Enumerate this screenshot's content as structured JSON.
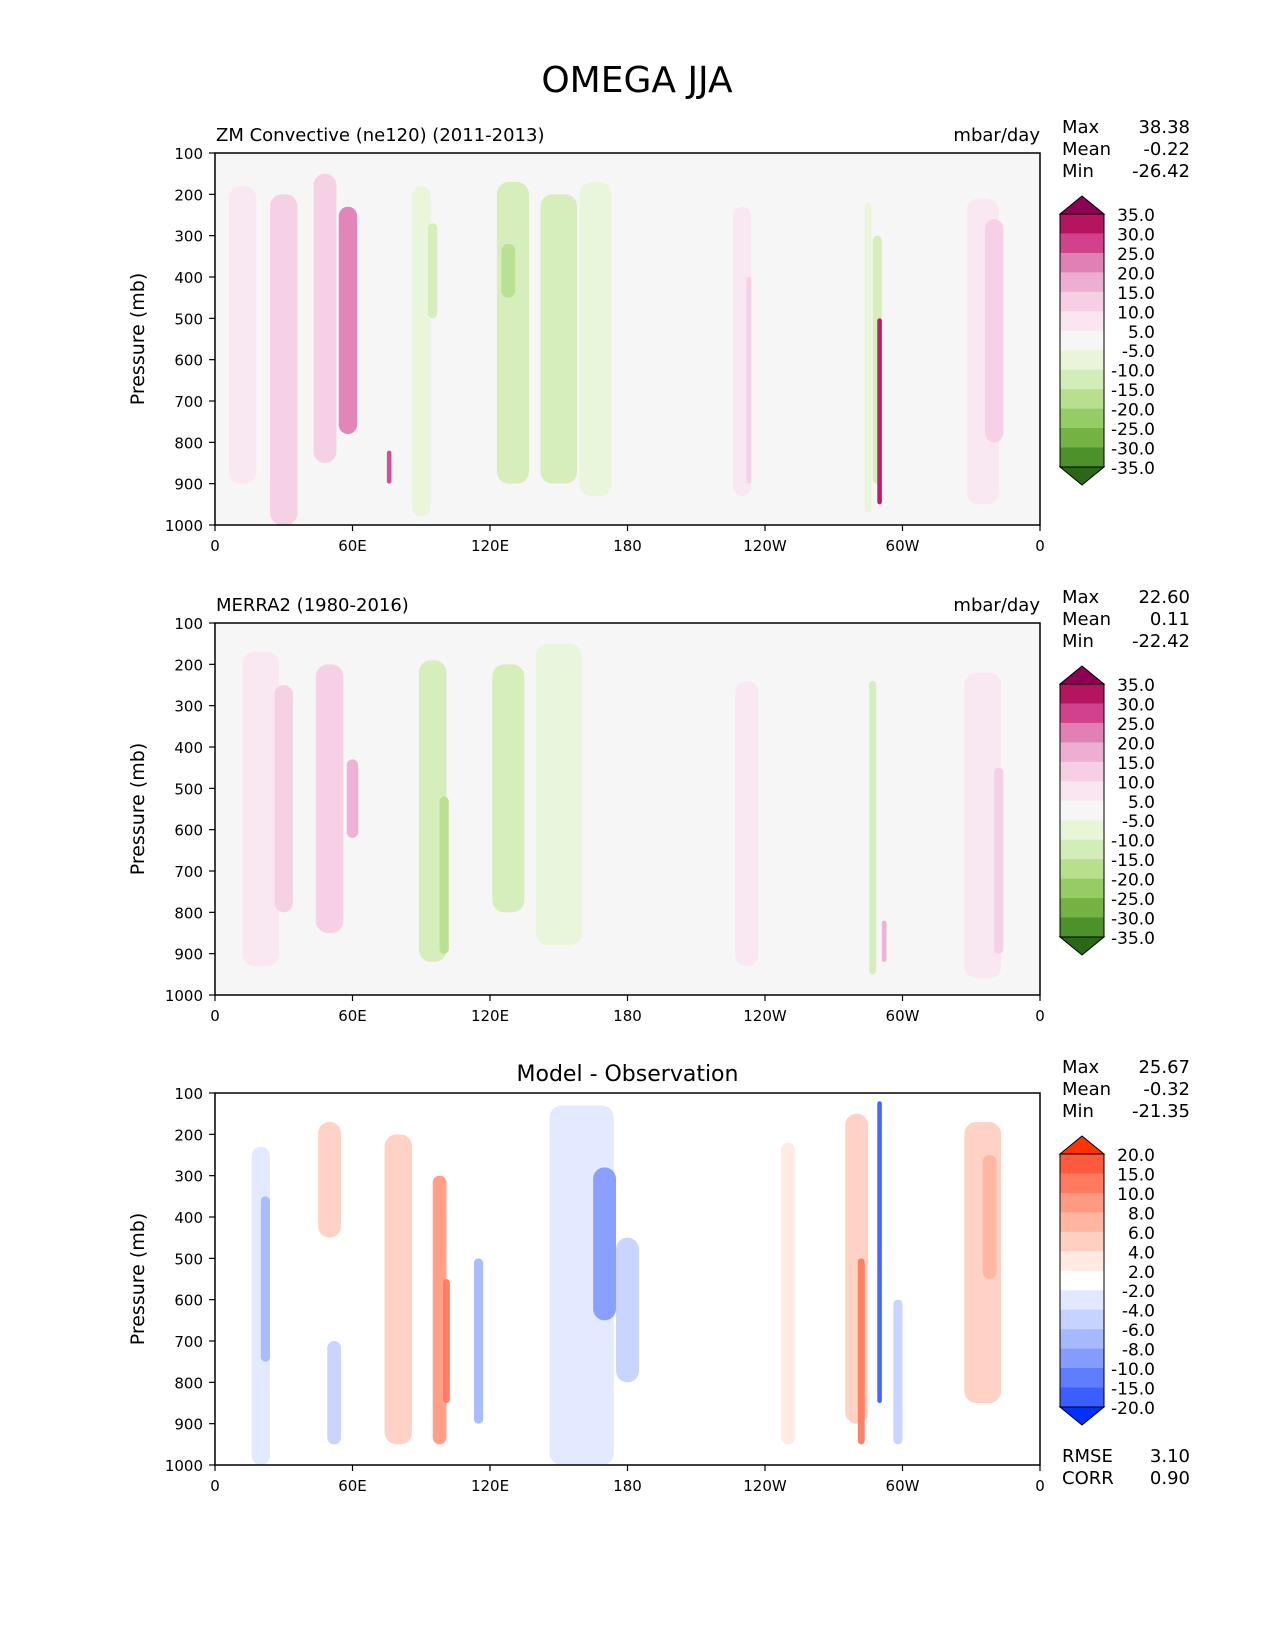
{
  "figure_title": "OMEGA JJA",
  "chart_data": [
    {
      "type": "heatmap",
      "title": "ZM Convective (ne120) (2011-2013)",
      "units": "mbar/day",
      "ylabel": "Pressure (mb)",
      "xticks": [
        "0",
        "60E",
        "120E",
        "180",
        "120W",
        "60W",
        "0"
      ],
      "yticks": [
        "100",
        "200",
        "300",
        "400",
        "500",
        "600",
        "700",
        "800",
        "900",
        "1000"
      ],
      "xlim": [
        0,
        360
      ],
      "ylim": [
        1000,
        100
      ],
      "stats": [
        {
          "label": "Max",
          "value": "38.38"
        },
        {
          "label": "Mean",
          "value": "-0.22"
        },
        {
          "label": "Min",
          "value": "-26.42"
        }
      ],
      "colorbar": {
        "levels": [
          "35.0",
          "30.0",
          "25.0",
          "20.0",
          "15.0",
          "10.0",
          "5.0",
          "-5.0",
          "-10.0",
          "-15.0",
          "-20.0",
          "-25.0",
          "-30.0",
          "-35.0"
        ],
        "colors": [
          "#8e0152",
          "#b5155f",
          "#d0438c",
          "#e080b5",
          "#eeaed4",
          "#f6cfe5",
          "#f9e6f1",
          "#f6f6f6",
          "#e9f5d9",
          "#d3edb8",
          "#b7df8e",
          "#96cc66",
          "#74b244",
          "#4d912a",
          "#2a6818"
        ]
      },
      "features": [
        {
          "lon": 12,
          "p1": 180,
          "p2": 900,
          "width": 12,
          "value": 8
        },
        {
          "lon": 30,
          "p1": 200,
          "p2": 1000,
          "width": 12,
          "value": 10
        },
        {
          "lon": 48,
          "p1": 150,
          "p2": 850,
          "width": 10,
          "value": 10
        },
        {
          "lon": 58,
          "p1": 230,
          "p2": 780,
          "width": 8,
          "value": 22
        },
        {
          "lon": 76,
          "p1": 820,
          "p2": 900,
          "width": 2,
          "value": 25
        },
        {
          "lon": 90,
          "p1": 180,
          "p2": 980,
          "width": 8,
          "value": -8
        },
        {
          "lon": 95,
          "p1": 270,
          "p2": 500,
          "width": 4,
          "value": -13
        },
        {
          "lon": 130,
          "p1": 170,
          "p2": 900,
          "width": 14,
          "value": -12
        },
        {
          "lon": 128,
          "p1": 320,
          "p2": 450,
          "width": 6,
          "value": -18
        },
        {
          "lon": 150,
          "p1": 200,
          "p2": 900,
          "width": 16,
          "value": -12
        },
        {
          "lon": 166,
          "p1": 170,
          "p2": 930,
          "width": 14,
          "value": -8
        },
        {
          "lon": 230,
          "p1": 230,
          "p2": 930,
          "width": 8,
          "value": 8
        },
        {
          "lon": 233,
          "p1": 400,
          "p2": 900,
          "width": 2,
          "value": 12
        },
        {
          "lon": 285,
          "p1": 220,
          "p2": 970,
          "width": 3,
          "value": -10
        },
        {
          "lon": 290,
          "p1": 500,
          "p2": 950,
          "width": 2,
          "value": 30
        },
        {
          "lon": 289,
          "p1": 300,
          "p2": 900,
          "width": 4,
          "value": -14
        },
        {
          "lon": 335,
          "p1": 210,
          "p2": 950,
          "width": 14,
          "value": 8
        },
        {
          "lon": 340,
          "p1": 260,
          "p2": 800,
          "width": 8,
          "value": 13
        }
      ]
    },
    {
      "type": "heatmap",
      "title": "MERRA2 (1980-2016)",
      "units": "mbar/day",
      "ylabel": "Pressure (mb)",
      "xticks": [
        "0",
        "60E",
        "120E",
        "180",
        "120W",
        "60W",
        "0"
      ],
      "yticks": [
        "100",
        "200",
        "300",
        "400",
        "500",
        "600",
        "700",
        "800",
        "900",
        "1000"
      ],
      "xlim": [
        0,
        360
      ],
      "ylim": [
        1000,
        100
      ],
      "stats": [
        {
          "label": "Max",
          "value": "22.60"
        },
        {
          "label": "Mean",
          "value": "0.11"
        },
        {
          "label": "Min",
          "value": "-22.42"
        }
      ],
      "colorbar": {
        "levels": [
          "35.0",
          "30.0",
          "25.0",
          "20.0",
          "15.0",
          "10.0",
          "5.0",
          "-5.0",
          "-10.0",
          "-15.0",
          "-20.0",
          "-25.0",
          "-30.0",
          "-35.0"
        ],
        "colors": [
          "#8e0152",
          "#b5155f",
          "#d0438c",
          "#e080b5",
          "#eeaed4",
          "#f6cfe5",
          "#f9e6f1",
          "#f6f6f6",
          "#e9f5d9",
          "#d3edb8",
          "#b7df8e",
          "#96cc66",
          "#74b244",
          "#4d912a",
          "#2a6818"
        ]
      },
      "features": [
        {
          "lon": 20,
          "p1": 170,
          "p2": 930,
          "width": 16,
          "value": 8
        },
        {
          "lon": 30,
          "p1": 250,
          "p2": 800,
          "width": 8,
          "value": 12
        },
        {
          "lon": 50,
          "p1": 200,
          "p2": 850,
          "width": 12,
          "value": 10
        },
        {
          "lon": 60,
          "p1": 430,
          "p2": 620,
          "width": 5,
          "value": 16
        },
        {
          "lon": 95,
          "p1": 190,
          "p2": 920,
          "width": 12,
          "value": -11
        },
        {
          "lon": 100,
          "p1": 520,
          "p2": 900,
          "width": 4,
          "value": -17
        },
        {
          "lon": 128,
          "p1": 200,
          "p2": 800,
          "width": 14,
          "value": -12
        },
        {
          "lon": 150,
          "p1": 150,
          "p2": 880,
          "width": 20,
          "value": -7
        },
        {
          "lon": 232,
          "p1": 240,
          "p2": 930,
          "width": 10,
          "value": 8
        },
        {
          "lon": 287,
          "p1": 240,
          "p2": 950,
          "width": 3,
          "value": -13
        },
        {
          "lon": 292,
          "p1": 820,
          "p2": 920,
          "width": 2,
          "value": 18
        },
        {
          "lon": 335,
          "p1": 220,
          "p2": 960,
          "width": 16,
          "value": 8
        },
        {
          "lon": 342,
          "p1": 450,
          "p2": 900,
          "width": 4,
          "value": 12
        }
      ]
    },
    {
      "type": "heatmap",
      "title": "Model - Observation",
      "units": "",
      "ylabel": "Pressure (mb)",
      "xticks": [
        "0",
        "60E",
        "120E",
        "180",
        "120W",
        "60W",
        "0"
      ],
      "yticks": [
        "100",
        "200",
        "300",
        "400",
        "500",
        "600",
        "700",
        "800",
        "900",
        "1000"
      ],
      "xlim": [
        0,
        360
      ],
      "ylim": [
        1000,
        100
      ],
      "stats": [
        {
          "label": "Max",
          "value": "25.67"
        },
        {
          "label": "Mean",
          "value": "-0.32"
        },
        {
          "label": "Min",
          "value": "-21.35"
        }
      ],
      "extra_stats": [
        {
          "label": "RMSE",
          "value": "3.10"
        },
        {
          "label": "CORR",
          "value": "0.90"
        }
      ],
      "colorbar": {
        "levels": [
          "20.0",
          "15.0",
          "10.0",
          "8.0",
          "6.0",
          "4.0",
          "2.0",
          "-2.0",
          "-4.0",
          "-6.0",
          "-8.0",
          "-10.0",
          "-15.0",
          "-20.0"
        ],
        "colors": [
          "#ff3300",
          "#ff5a3d",
          "#ff7a5e",
          "#ff9a82",
          "#ffb5a0",
          "#ffd0c2",
          "#ffeae2",
          "#ffffff",
          "#e2e8ff",
          "#c6d2ff",
          "#a6b8ff",
          "#859cff",
          "#5f7dff",
          "#3d5eff",
          "#0030ff"
        ]
      },
      "features": [
        {
          "lon": 20,
          "p1": 230,
          "p2": 1000,
          "width": 8,
          "value": -4
        },
        {
          "lon": 22,
          "p1": 350,
          "p2": 750,
          "width": 4,
          "value": -7
        },
        {
          "lon": 50,
          "p1": 170,
          "p2": 450,
          "width": 10,
          "value": 4
        },
        {
          "lon": 52,
          "p1": 700,
          "p2": 950,
          "width": 6,
          "value": -5
        },
        {
          "lon": 80,
          "p1": 200,
          "p2": 950,
          "width": 12,
          "value": 5
        },
        {
          "lon": 98,
          "p1": 300,
          "p2": 950,
          "width": 6,
          "value": 9
        },
        {
          "lon": 101,
          "p1": 550,
          "p2": 850,
          "width": 3,
          "value": 14
        },
        {
          "lon": 115,
          "p1": 500,
          "p2": 900,
          "width": 4,
          "value": -7
        },
        {
          "lon": 160,
          "p1": 130,
          "p2": 1000,
          "width": 28,
          "value": -3
        },
        {
          "lon": 170,
          "p1": 280,
          "p2": 650,
          "width": 10,
          "value": -9
        },
        {
          "lon": 180,
          "p1": 450,
          "p2": 800,
          "width": 10,
          "value": -5
        },
        {
          "lon": 250,
          "p1": 220,
          "p2": 950,
          "width": 6,
          "value": 3
        },
        {
          "lon": 280,
          "p1": 150,
          "p2": 900,
          "width": 10,
          "value": 4
        },
        {
          "lon": 282,
          "p1": 500,
          "p2": 950,
          "width": 3,
          "value": 13
        },
        {
          "lon": 290,
          "p1": 120,
          "p2": 850,
          "width": 2,
          "value": -18
        },
        {
          "lon": 298,
          "p1": 600,
          "p2": 950,
          "width": 4,
          "value": -6
        },
        {
          "lon": 335,
          "p1": 170,
          "p2": 850,
          "width": 16,
          "value": 4
        },
        {
          "lon": 338,
          "p1": 250,
          "p2": 550,
          "width": 6,
          "value": 7
        }
      ]
    }
  ]
}
